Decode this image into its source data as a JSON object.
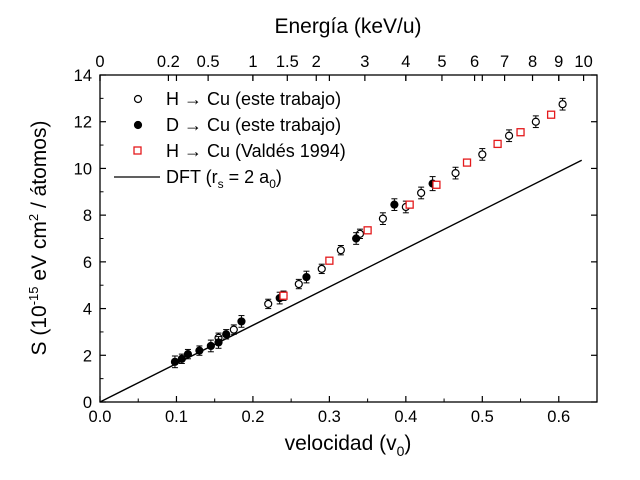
{
  "chart_data": {
    "type": "scatter",
    "xlabel": "velocidad (v0)",
    "xlabel_parts": {
      "main": "velocidad (v",
      "sub": "0",
      "close": ")"
    },
    "ylabel": "S (10-15 eV cm2 / átomos)",
    "ylabel_parts": {
      "prefix": "S (10",
      "exp": "-15",
      "mid": " eV cm",
      "exp2": "2",
      "suffix": " / átomos)"
    },
    "top_axis_label": "Energía (keV/u)",
    "xlim": [
      0.0,
      0.65
    ],
    "ylim": [
      0,
      14
    ],
    "x_ticks": [
      0.0,
      0.1,
      0.2,
      0.3,
      0.4,
      0.5,
      0.6
    ],
    "x_tick_labels": [
      "0.0",
      "0.1",
      "0.2",
      "0.3",
      "0.4",
      "0.5",
      "0.6"
    ],
    "y_ticks": [
      0,
      2,
      4,
      6,
      8,
      10,
      12,
      14
    ],
    "y_tick_labels": [
      "0",
      "2",
      "4",
      "6",
      "8",
      "10",
      "12",
      "14"
    ],
    "top_ticks_keV": [
      0,
      0.2,
      0.5,
      1,
      1.5,
      2,
      3,
      4,
      5,
      6,
      7,
      8,
      9,
      10
    ],
    "top_tick_labels": [
      "0",
      "0.2",
      "0.5",
      "1",
      "1.5",
      "2",
      "3",
      "4",
      "5",
      "6",
      "7",
      "8",
      "9",
      "10"
    ],
    "top_tick_velocity_factor": 0.2,
    "grid": false,
    "legend_position": "top-left",
    "series": [
      {
        "name": "H → Cu (este trabajo)",
        "marker": "open-circle",
        "color": "#000000",
        "x": [
          0.155,
          0.175,
          0.22,
          0.24,
          0.26,
          0.29,
          0.315,
          0.34,
          0.37,
          0.4,
          0.42,
          0.465,
          0.5,
          0.535,
          0.57,
          0.605
        ],
        "y": [
          2.75,
          3.1,
          4.2,
          4.55,
          5.05,
          5.7,
          6.5,
          7.2,
          7.85,
          8.35,
          8.95,
          9.8,
          10.6,
          11.4,
          12.0,
          12.75
        ],
        "yerr": [
          0.2,
          0.2,
          0.2,
          0.2,
          0.2,
          0.2,
          0.2,
          0.2,
          0.25,
          0.25,
          0.25,
          0.25,
          0.25,
          0.25,
          0.25,
          0.25
        ]
      },
      {
        "name": "D → Cu (este trabajo)",
        "marker": "filled-circle",
        "color": "#000000",
        "x": [
          0.098,
          0.107,
          0.115,
          0.13,
          0.145,
          0.155,
          0.165,
          0.185,
          0.235,
          0.27,
          0.335,
          0.385,
          0.435
        ],
        "y": [
          1.72,
          1.85,
          2.05,
          2.2,
          2.4,
          2.55,
          2.9,
          3.45,
          4.45,
          5.35,
          7.0,
          8.45,
          9.35
        ],
        "yerr": [
          0.25,
          0.2,
          0.2,
          0.2,
          0.25,
          0.25,
          0.2,
          0.25,
          0.25,
          0.25,
          0.25,
          0.25,
          0.3
        ]
      },
      {
        "name": "H → Cu (Valdés 1994)",
        "marker": "open-square",
        "color": "#e41a1c",
        "x": [
          0.24,
          0.3,
          0.35,
          0.405,
          0.44,
          0.48,
          0.52,
          0.55,
          0.59
        ],
        "y": [
          4.55,
          6.05,
          7.35,
          8.45,
          9.3,
          10.25,
          11.05,
          11.55,
          12.3
        ]
      },
      {
        "name": "DFT (rs = 2 a0)",
        "label_parts": {
          "pre": "DFT (r",
          "sub1": "s",
          "mid": " = 2 a",
          "sub2": "0",
          "post": ")"
        },
        "marker": "line",
        "color": "#000000",
        "x": [
          0.0,
          0.63
        ],
        "y": [
          0.0,
          10.35
        ]
      }
    ]
  }
}
